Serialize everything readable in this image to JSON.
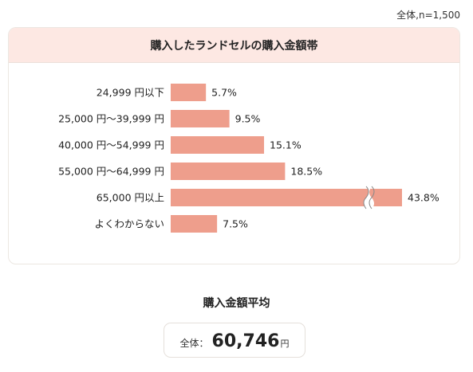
{
  "sample_note": "全体,n=1,500",
  "chart_data": {
    "type": "bar",
    "orientation": "horizontal",
    "title": "購入したランドセルの購入金額帯",
    "categories": [
      "24,999 円以下",
      "25,000 円～39,999 円",
      "40,000 円～54,999 円",
      "55,000 円～64,999 円",
      "65,000 円以上",
      "よくわからない"
    ],
    "values": [
      5.7,
      9.5,
      15.1,
      18.5,
      43.8,
      7.5
    ],
    "value_labels": [
      "5.7%",
      "9.5%",
      "15.1%",
      "18.5%",
      "43.8%",
      "7.5%"
    ],
    "unit": "%",
    "broken_axis_categories": [
      "65,000 円以上"
    ],
    "bar_color": "#ee9e8c",
    "grid": false,
    "legend": "none"
  },
  "average": {
    "title": "購入金額平均",
    "label": "全体：",
    "value": "60,746",
    "unit": "円"
  }
}
